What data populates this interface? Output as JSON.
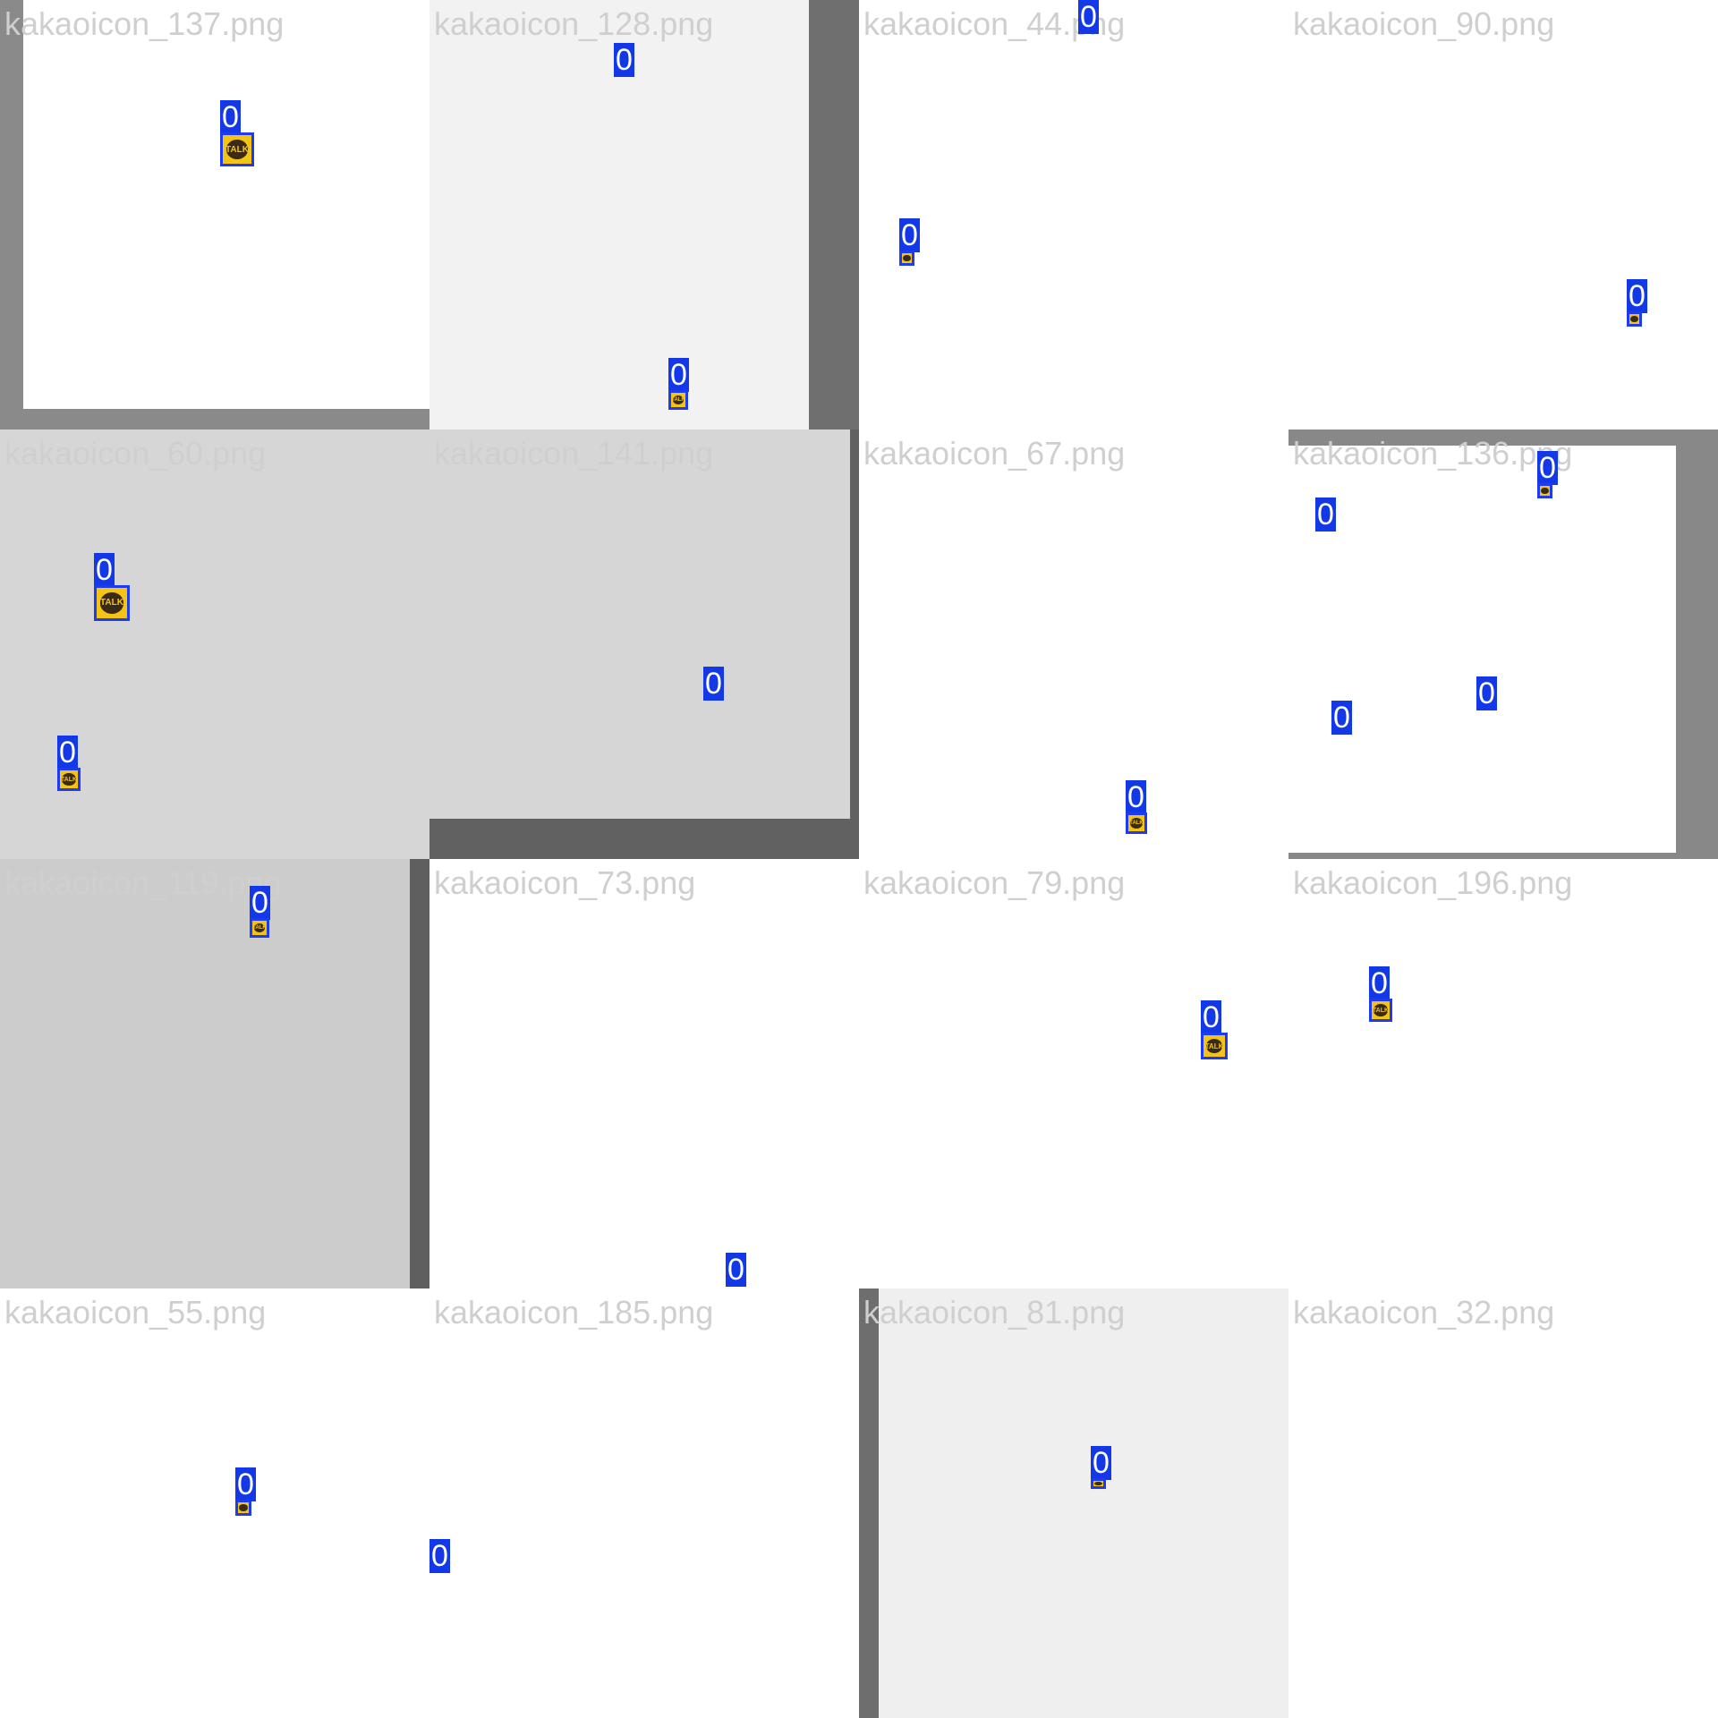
{
  "tiles": [
    {
      "file": "kakaoicon_137.png",
      "detections": [
        {
          "label": "0"
        }
      ]
    },
    {
      "file": "kakaoicon_128.png",
      "detections": [
        {
          "label": "0"
        },
        {
          "label": "0"
        }
      ]
    },
    {
      "file": "kakaoicon_44.png",
      "detections": [
        {
          "label": "0"
        },
        {
          "label": "0"
        }
      ]
    },
    {
      "file": "kakaoicon_90.png",
      "detections": [
        {
          "label": "0"
        }
      ]
    },
    {
      "file": "kakaoicon_60.png",
      "detections": [
        {
          "label": "0"
        },
        {
          "label": "0"
        }
      ]
    },
    {
      "file": "kakaoicon_141.png",
      "detections": [
        {
          "label": "0"
        }
      ]
    },
    {
      "file": "kakaoicon_67.png",
      "detections": [
        {
          "label": "0"
        }
      ]
    },
    {
      "file": "kakaoicon_136.png",
      "detections": [
        {
          "label": "0"
        },
        {
          "label": "0"
        },
        {
          "label": "0"
        },
        {
          "label": "0"
        }
      ]
    },
    {
      "file": "kakaoicon_119.png",
      "detections": [
        {
          "label": "0"
        }
      ]
    },
    {
      "file": "kakaoicon_73.png",
      "detections": [
        {
          "label": "0"
        }
      ]
    },
    {
      "file": "kakaoicon_79.png",
      "detections": [
        {
          "label": "0"
        }
      ]
    },
    {
      "file": "kakaoicon_196.png",
      "detections": [
        {
          "label": "0"
        }
      ]
    },
    {
      "file": "kakaoicon_55.png",
      "detections": [
        {
          "label": "0"
        }
      ]
    },
    {
      "file": "kakaoicon_185.png",
      "detections": [
        {
          "label": "0"
        }
      ]
    },
    {
      "file": "kakaoicon_81.png",
      "detections": [
        {
          "label": "0"
        }
      ]
    },
    {
      "file": "kakaoicon_32.png",
      "detections": []
    }
  ],
  "icon": {
    "name": "kakaotalk-icon",
    "text": "TALK"
  },
  "colors": {
    "label_bg": "#1238e8",
    "box_border": "#1d3cf0",
    "icon_yellow": "#f3c415",
    "icon_brown": "#3a2a16",
    "title_text": "#cfcfcf"
  }
}
